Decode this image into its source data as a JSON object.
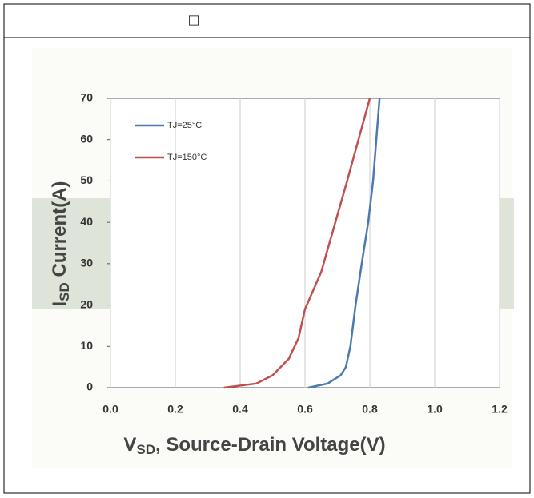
{
  "header": {
    "title": "□"
  },
  "chart_data": {
    "type": "line",
    "y_label": {
      "main": "I",
      "sub": "SD",
      "rest": " Current(A)"
    },
    "x_label": {
      "main": "V",
      "sub": "SD",
      "rest": ", Source-Drain Voltage(V)"
    },
    "xlim": [
      0,
      1.2
    ],
    "ylim": [
      0,
      70
    ],
    "xticks": [
      {
        "value": 0,
        "label": "0.0"
      },
      0.2,
      0.4,
      0.6,
      0.8,
      {
        "value": 1,
        "label": "1.0"
      },
      1.2
    ],
    "yticks": [
      0,
      10,
      20,
      30,
      40,
      50,
      60,
      70
    ],
    "grid": true,
    "legend": "upper left",
    "series": [
      {
        "name": "TJ=25°C",
        "color": "#4a7ab0",
        "x": [
          0.61,
          0.67,
          0.71,
          0.726,
          0.74,
          0.756,
          0.775,
          0.795,
          0.81,
          0.83
        ],
        "values": [
          0,
          1,
          3,
          5,
          10,
          20,
          30,
          40,
          50,
          70
        ]
      },
      {
        "name": "TJ=150°C",
        "color": "#c0504d",
        "x": [
          0.35,
          0.45,
          0.5,
          0.55,
          0.58,
          0.6,
          0.65,
          0.69,
          0.73,
          0.8
        ],
        "values": [
          0,
          1,
          3,
          7,
          12,
          19,
          28,
          39,
          50,
          70
        ]
      }
    ]
  }
}
